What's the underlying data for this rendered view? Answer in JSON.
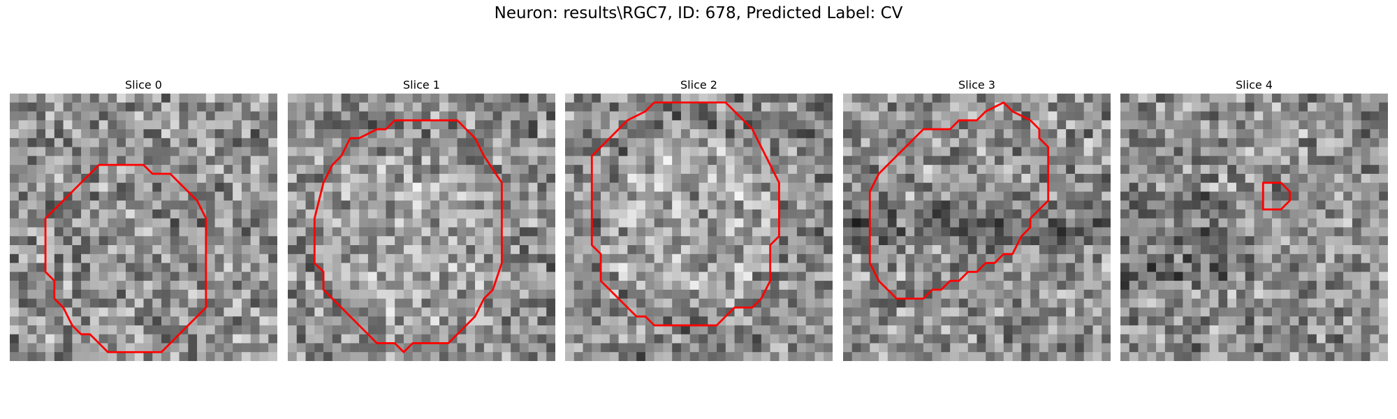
{
  "figure": {
    "title": "Neuron: results\\RGC7, ID: 678, Predicted Label: CV"
  },
  "colors": {
    "contour": "#ff0000"
  },
  "panels": [
    {
      "title": "Slice 0",
      "contour": [
        [
          11,
          8
        ],
        [
          15,
          8
        ],
        [
          16,
          9
        ],
        [
          18,
          9
        ],
        [
          21,
          12
        ],
        [
          22,
          14
        ],
        [
          22,
          24
        ],
        [
          21,
          25
        ],
        [
          19,
          27
        ],
        [
          18,
          28
        ],
        [
          17,
          29
        ],
        [
          11,
          29
        ],
        [
          9,
          27
        ],
        [
          8,
          27
        ],
        [
          7,
          26
        ],
        [
          6,
          24
        ],
        [
          5,
          23
        ],
        [
          5,
          21
        ],
        [
          4,
          20
        ],
        [
          4,
          14
        ],
        [
          5,
          13
        ],
        [
          6,
          12
        ],
        [
          8,
          10
        ],
        [
          9,
          9
        ],
        [
          10,
          8
        ]
      ]
    },
    {
      "title": "Slice 1",
      "contour": [
        [
          11,
          4
        ],
        [
          12,
          3
        ],
        [
          19,
          3
        ],
        [
          20,
          4
        ],
        [
          21,
          5
        ],
        [
          22,
          7
        ],
        [
          24,
          10
        ],
        [
          24,
          19
        ],
        [
          23,
          22
        ],
        [
          22,
          23
        ],
        [
          21,
          25
        ],
        [
          20,
          26
        ],
        [
          19,
          27
        ],
        [
          18,
          28
        ],
        [
          14,
          28
        ],
        [
          13,
          29
        ],
        [
          12,
          28
        ],
        [
          10,
          28
        ],
        [
          8,
          26
        ],
        [
          6,
          24
        ],
        [
          4,
          22
        ],
        [
          4,
          20
        ],
        [
          3,
          19
        ],
        [
          3,
          14
        ],
        [
          4,
          10
        ],
        [
          5,
          8
        ],
        [
          6,
          7
        ],
        [
          7,
          5
        ],
        [
          8,
          5
        ],
        [
          10,
          4
        ]
      ]
    },
    {
      "title": "Slice 2",
      "contour": [
        [
          11,
          1
        ],
        [
          18,
          1
        ],
        [
          20,
          3
        ],
        [
          21,
          4
        ],
        [
          22,
          6
        ],
        [
          23,
          8
        ],
        [
          24,
          10
        ],
        [
          24,
          16
        ],
        [
          23,
          17
        ],
        [
          23,
          21
        ],
        [
          22,
          23
        ],
        [
          21,
          24
        ],
        [
          19,
          24
        ],
        [
          18,
          25
        ],
        [
          17,
          26
        ],
        [
          10,
          26
        ],
        [
          9,
          25
        ],
        [
          8,
          25
        ],
        [
          7,
          24
        ],
        [
          5,
          22
        ],
        [
          4,
          21
        ],
        [
          4,
          18
        ],
        [
          3,
          17
        ],
        [
          3,
          7
        ],
        [
          4,
          6
        ],
        [
          5,
          5
        ],
        [
          7,
          3
        ],
        [
          9,
          2
        ],
        [
          10,
          1
        ]
      ]
    },
    {
      "title": "Slice 3",
      "contour": [
        [
          18,
          1
        ],
        [
          19,
          2
        ],
        [
          21,
          3
        ],
        [
          22,
          4
        ],
        [
          22,
          5
        ],
        [
          23,
          6
        ],
        [
          23,
          12
        ],
        [
          22,
          13
        ],
        [
          21,
          14
        ],
        [
          21,
          15
        ],
        [
          20,
          16
        ],
        [
          19,
          18
        ],
        [
          18,
          18
        ],
        [
          17,
          19
        ],
        [
          16,
          19
        ],
        [
          15,
          20
        ],
        [
          14,
          20
        ],
        [
          13,
          21
        ],
        [
          12,
          21
        ],
        [
          11,
          22
        ],
        [
          10,
          22
        ],
        [
          9,
          23
        ],
        [
          7,
          23
        ],
        [
          6,
          23
        ],
        [
          5,
          22
        ],
        [
          4,
          21
        ],
        [
          3,
          19
        ],
        [
          3,
          11
        ],
        [
          4,
          9
        ],
        [
          5,
          8
        ],
        [
          6,
          7
        ],
        [
          7,
          6
        ],
        [
          8,
          5
        ],
        [
          9,
          4
        ],
        [
          12,
          4
        ],
        [
          13,
          3
        ],
        [
          15,
          3
        ],
        [
          16,
          2
        ],
        [
          18,
          1
        ]
      ]
    },
    {
      "title": "Slice 4",
      "contour": [
        [
          16,
          10
        ],
        [
          18,
          10
        ],
        [
          19,
          11
        ],
        [
          19,
          12
        ],
        [
          18,
          13
        ],
        [
          17,
          13
        ],
        [
          16,
          13
        ],
        [
          16,
          12
        ],
        [
          16,
          11
        ]
      ]
    }
  ]
}
